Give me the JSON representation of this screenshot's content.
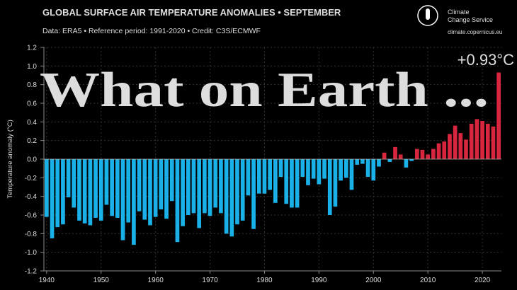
{
  "chart_data": {
    "type": "bar",
    "title": "GLOBAL SURFACE AIR TEMPERATURE ANOMALIES • SEPTEMBER",
    "subtitle": "Data: ERA5 • Reference period: 1991-2020 • Credit: C3S/ECMWF",
    "y_label": "Temperature anomaly (°C)",
    "annotation": "+0.93°C",
    "overlay_text": "What on Earth ...",
    "logo_lines": [
      "Climate",
      "Change Service"
    ],
    "logo_url": "climate.copernicus.eu",
    "x": [
      1940,
      1941,
      1942,
      1943,
      1944,
      1945,
      1946,
      1947,
      1948,
      1949,
      1950,
      1951,
      1952,
      1953,
      1954,
      1955,
      1956,
      1957,
      1958,
      1959,
      1960,
      1961,
      1962,
      1963,
      1964,
      1965,
      1966,
      1967,
      1968,
      1969,
      1970,
      1971,
      1972,
      1973,
      1974,
      1975,
      1976,
      1977,
      1978,
      1979,
      1980,
      1981,
      1982,
      1983,
      1984,
      1985,
      1986,
      1987,
      1988,
      1989,
      1990,
      1991,
      1992,
      1993,
      1994,
      1995,
      1996,
      1997,
      1998,
      1999,
      2000,
      2001,
      2002,
      2003,
      2004,
      2005,
      2006,
      2007,
      2008,
      2009,
      2010,
      2011,
      2012,
      2013,
      2014,
      2015,
      2016,
      2017,
      2018,
      2019,
      2020,
      2021,
      2022,
      2023
    ],
    "values": [
      -0.62,
      -0.85,
      -0.73,
      -0.7,
      -0.41,
      -0.52,
      -0.66,
      -0.69,
      -0.71,
      -0.63,
      -0.66,
      -0.49,
      -0.61,
      -0.63,
      -0.87,
      -0.68,
      -0.92,
      -0.56,
      -0.65,
      -0.71,
      -0.62,
      -0.54,
      -0.64,
      -0.45,
      -0.89,
      -0.72,
      -0.6,
      -0.58,
      -0.74,
      -0.58,
      -0.61,
      -0.52,
      -0.58,
      -0.8,
      -0.83,
      -0.7,
      -0.66,
      -0.39,
      -0.75,
      -0.37,
      -0.37,
      -0.33,
      -0.47,
      -0.19,
      -0.48,
      -0.52,
      -0.52,
      -0.19,
      -0.28,
      -0.21,
      -0.27,
      -0.21,
      -0.6,
      -0.51,
      -0.23,
      -0.2,
      -0.33,
      -0.06,
      -0.05,
      -0.19,
      -0.23,
      -0.08,
      0.07,
      -0.03,
      0.13,
      0.05,
      -0.09,
      -0.02,
      0.11,
      0.1,
      0.05,
      0.11,
      0.17,
      0.19,
      0.27,
      0.36,
      0.28,
      0.21,
      0.38,
      0.43,
      0.41,
      0.38,
      0.35,
      0.93
    ],
    "colors": {
      "negative": "#1ab0e8",
      "positive": "#d7263d"
    },
    "xlim": [
      1939.5,
      2023.5
    ],
    "xticks": [
      1940,
      1950,
      1960,
      1970,
      1980,
      1990,
      2000,
      2010,
      2020
    ],
    "ylim": [
      -1.2,
      1.2
    ],
    "yticks": [
      -1.2,
      {
        "value": -1,
        "label": "-1.0"
      },
      -0.8,
      -0.6,
      -0.4,
      -0.2,
      {
        "value": 0,
        "label": "0.0"
      },
      0.2,
      0.4,
      0.6,
      0.8,
      {
        "value": 1,
        "label": "1.0"
      },
      1.2
    ],
    "grid": true
  }
}
